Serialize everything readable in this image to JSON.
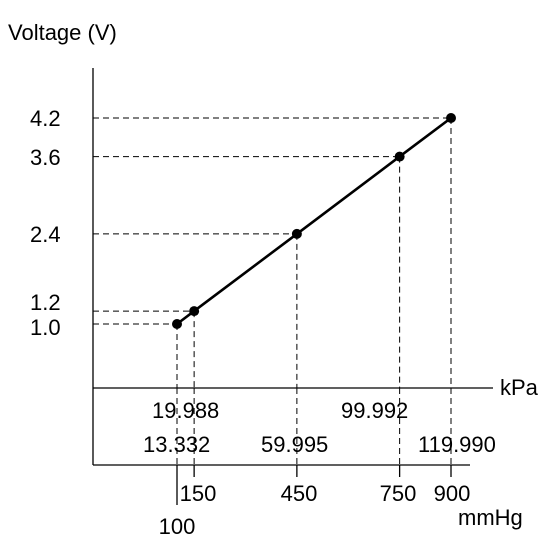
{
  "chart_data": {
    "type": "line",
    "title": "",
    "ylabel": "Voltage (V)",
    "x_axis_upper_unit": "kPa",
    "x_axis_lower_unit": "mmHg",
    "y_ticks": [
      "4.2",
      "3.6",
      "2.4",
      "1.2",
      "1.0"
    ],
    "kpa_ticks_row1": [
      "19.988",
      "99.992"
    ],
    "kpa_ticks_row2": [
      "13.332",
      "59.995",
      "119.990"
    ],
    "mmhg_ticks_row1": [
      "150",
      "450",
      "750",
      "900"
    ],
    "mmhg_ticks_row2": [
      "100"
    ],
    "series": [
      {
        "mmHg": [
          100,
          150,
          450,
          750,
          900
        ],
        "kPa": [
          13.332,
          19.988,
          59.995,
          99.992,
          119.99
        ],
        "voltage": [
          1.0,
          1.2,
          2.4,
          3.6,
          4.2
        ]
      }
    ],
    "grid": false,
    "colors": {
      "line": "#000000",
      "background": "#ffffff"
    }
  }
}
